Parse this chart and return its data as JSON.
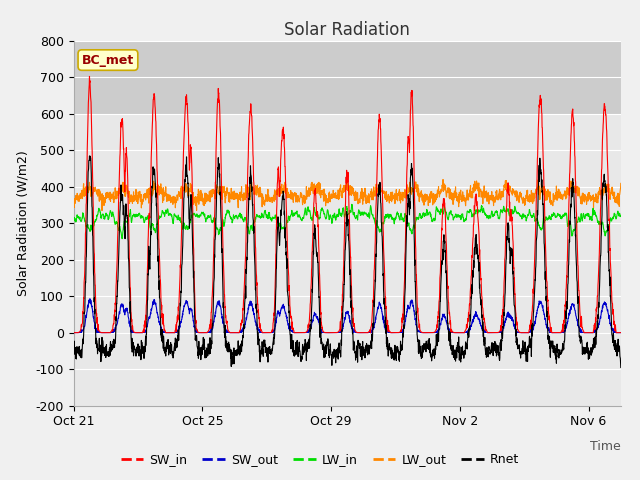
{
  "title": "Solar Radiation",
  "xlabel": "Time",
  "ylabel": "Solar Radiation (W/m2)",
  "legend_label": "BC_met",
  "series_names": [
    "SW_in",
    "SW_out",
    "LW_in",
    "LW_out",
    "Rnet"
  ],
  "series_colors": [
    "#ff0000",
    "#0000cc",
    "#00dd00",
    "#ff8800",
    "#000000"
  ],
  "ylim": [
    -200,
    800
  ],
  "yticks": [
    -200,
    -100,
    0,
    100,
    200,
    300,
    400,
    500,
    600,
    700,
    800
  ],
  "xtick_labels": [
    "Oct 21",
    "Oct 25",
    "Oct 29",
    "Nov 2",
    "Nov 6"
  ],
  "bg_color": "#f0f0f0",
  "plot_bg_color_lower": "#e8e8e8",
  "plot_bg_color_upper": "#d8d8d8",
  "grid_color": "#ffffff",
  "n_days": 17,
  "pts_per_day": 144
}
